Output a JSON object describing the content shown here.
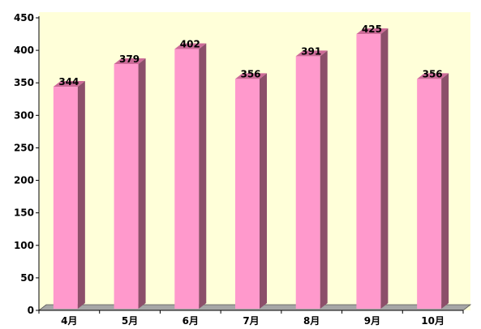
{
  "chart_data": {
    "type": "bar",
    "categories": [
      "4月",
      "5月",
      "6月",
      "7月",
      "8月",
      "9月",
      "10月"
    ],
    "values": [
      344,
      379,
      402,
      356,
      391,
      425,
      356
    ],
    "ylim": [
      0,
      450
    ],
    "yticks": [
      0,
      50,
      100,
      150,
      200,
      250,
      300,
      350,
      400,
      450
    ],
    "grid": false,
    "legend": "none",
    "data_labels": true,
    "title": "",
    "xlabel": "",
    "ylabel": "",
    "colors": {
      "plot_background": "#ffffd9",
      "bar_front": "#ff99cc",
      "bar_side": "#8c4f6a",
      "bar_top": "#cc6b98",
      "floor": "#a6a6a6",
      "axis": "#000000"
    }
  }
}
